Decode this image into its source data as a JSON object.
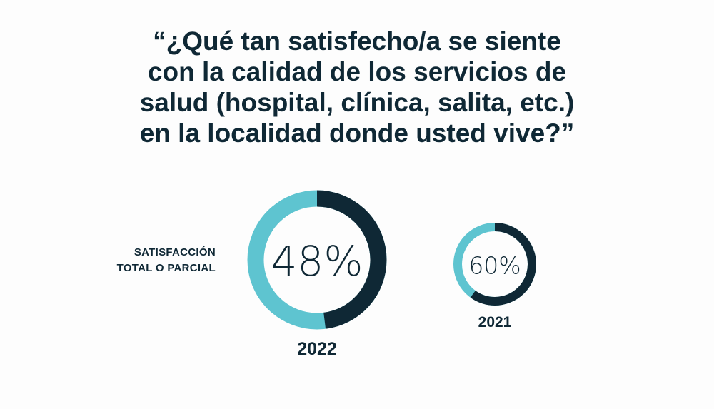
{
  "chart_data": {
    "type": "pie",
    "title": "“¿Qué tan satisfecho/a se siente\ncon la calidad de los servicios de\nsalud (hospital, clínica, salita, etc.)\nen la localidad donde usted vive?”",
    "category_label": "SATISFACCIÓN\nTOTAL O PARCIAL",
    "series": [
      {
        "name": "2022",
        "value": 48,
        "label": "48%"
      },
      {
        "name": "2021",
        "value": 60,
        "label": "60%"
      }
    ],
    "colors": {
      "value": "#0f2835",
      "remainder": "#5ec4d0"
    }
  }
}
